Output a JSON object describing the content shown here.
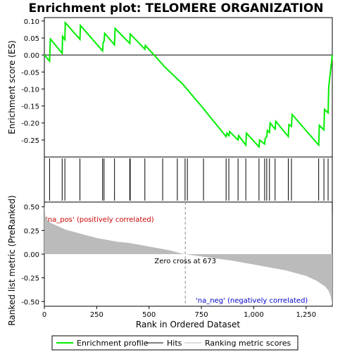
{
  "chart_data": {
    "type": "line",
    "title": "Enrichment plot: TELOMERE ORGANIZATION",
    "top_panel": {
      "ylabel": "Enrichment score (ES)",
      "ylim": [
        -0.3,
        0.11
      ],
      "yticks": [
        0.1,
        0.05,
        0.0,
        -0.05,
        -0.1,
        -0.15,
        -0.2,
        -0.25
      ],
      "ytick_labels": [
        "0.10",
        "0.05",
        "0.00",
        "-0.05",
        "-0.10",
        "-0.15",
        "-0.20",
        "-0.25"
      ],
      "series_color": "#00ee00",
      "es_profile": {
        "x": [
          0,
          25,
          29,
          85,
          87,
          98,
          100,
          170,
          172,
          278,
          281,
          285,
          288,
          335,
          338,
          408,
          410,
          480,
          482,
          565,
          570,
          660,
          760,
          765,
          868,
          872,
          881,
          885,
          925,
          928,
          962,
          965,
          1025,
          1028,
          1052,
          1055,
          1062,
          1065,
          1075,
          1078,
          1102,
          1105,
          1165,
          1168,
          1180,
          1183,
          1310,
          1313,
          1335,
          1338,
          1355,
          1358,
          1375
        ],
        "y": [
          0.0,
          -0.018,
          0.047,
          0.005,
          0.055,
          0.045,
          0.095,
          0.046,
          0.087,
          0.012,
          0.038,
          0.04,
          0.064,
          0.03,
          0.078,
          0.034,
          0.062,
          0.017,
          0.028,
          -0.028,
          -0.032,
          -0.085,
          -0.158,
          -0.162,
          -0.24,
          -0.23,
          -0.237,
          -0.225,
          -0.25,
          -0.237,
          -0.265,
          -0.23,
          -0.27,
          -0.25,
          -0.262,
          -0.245,
          -0.24,
          -0.222,
          -0.228,
          -0.2,
          -0.218,
          -0.195,
          -0.24,
          -0.205,
          -0.21,
          -0.175,
          -0.265,
          -0.207,
          -0.22,
          -0.16,
          -0.17,
          -0.095,
          0.0
        ]
      }
    },
    "hits": [
      25,
      85,
      98,
      170,
      278,
      285,
      335,
      408,
      410,
      480,
      565,
      635,
      672,
      683,
      760,
      868,
      881,
      925,
      962,
      1025,
      1052,
      1062,
      1075,
      1102,
      1165,
      1180,
      1310,
      1335,
      1355
    ],
    "color_bar": {
      "from_color": "#ff0000",
      "to_color": "#0000ff"
    },
    "bottom_panel": {
      "ylabel": "Ranked list metric (PreRanked)",
      "xlabel": "Rank in Ordered Dataset",
      "ylim": [
        -0.55,
        0.55
      ],
      "yticks": [
        0.5,
        0.25,
        0.0,
        -0.25,
        -0.5
      ],
      "ytick_labels": [
        "0.50",
        "0.25",
        "0.00",
        "-0.25",
        "-0.50"
      ],
      "xlim": [
        0,
        1375
      ],
      "xticks": [
        0,
        250,
        500,
        750,
        1000,
        1250
      ],
      "xtick_labels": [
        "0",
        "250",
        "500",
        "750",
        "1,000",
        "1,250"
      ],
      "metric_curve": {
        "x": [
          0,
          5,
          15,
          30,
          60,
          100,
          150,
          200,
          250,
          300,
          350,
          400,
          450,
          500,
          550,
          600,
          650,
          673,
          700,
          750,
          800,
          850,
          900,
          950,
          1000,
          1050,
          1100,
          1150,
          1200,
          1250,
          1280,
          1300,
          1320,
          1340,
          1355,
          1362,
          1368,
          1372,
          1375
        ],
        "y": [
          0.52,
          0.4,
          0.36,
          0.33,
          0.3,
          0.26,
          0.23,
          0.2,
          0.17,
          0.15,
          0.13,
          0.12,
          0.1,
          0.08,
          0.06,
          0.04,
          0.01,
          0.0,
          -0.01,
          -0.025,
          -0.04,
          -0.055,
          -0.07,
          -0.09,
          -0.11,
          -0.13,
          -0.15,
          -0.17,
          -0.2,
          -0.23,
          -0.26,
          -0.28,
          -0.31,
          -0.34,
          -0.38,
          -0.41,
          -0.45,
          -0.5,
          -0.54
        ]
      },
      "annotations": {
        "pos_label": "'na_pos' (positively correlated)",
        "neg_label": "'na_neg' (negatively correlated)",
        "zero_cross": "Zero cross at 673",
        "zero_cross_x": 673
      }
    },
    "legend": {
      "placement": "bottom",
      "items": [
        {
          "label": "Enrichment profile",
          "color": "#00ee00",
          "kind": "line"
        },
        {
          "label": "Hits",
          "color": "#000000",
          "kind": "line"
        },
        {
          "label": "Ranking metric scores",
          "color": "#bbbbbb",
          "kind": "line"
        }
      ]
    }
  }
}
